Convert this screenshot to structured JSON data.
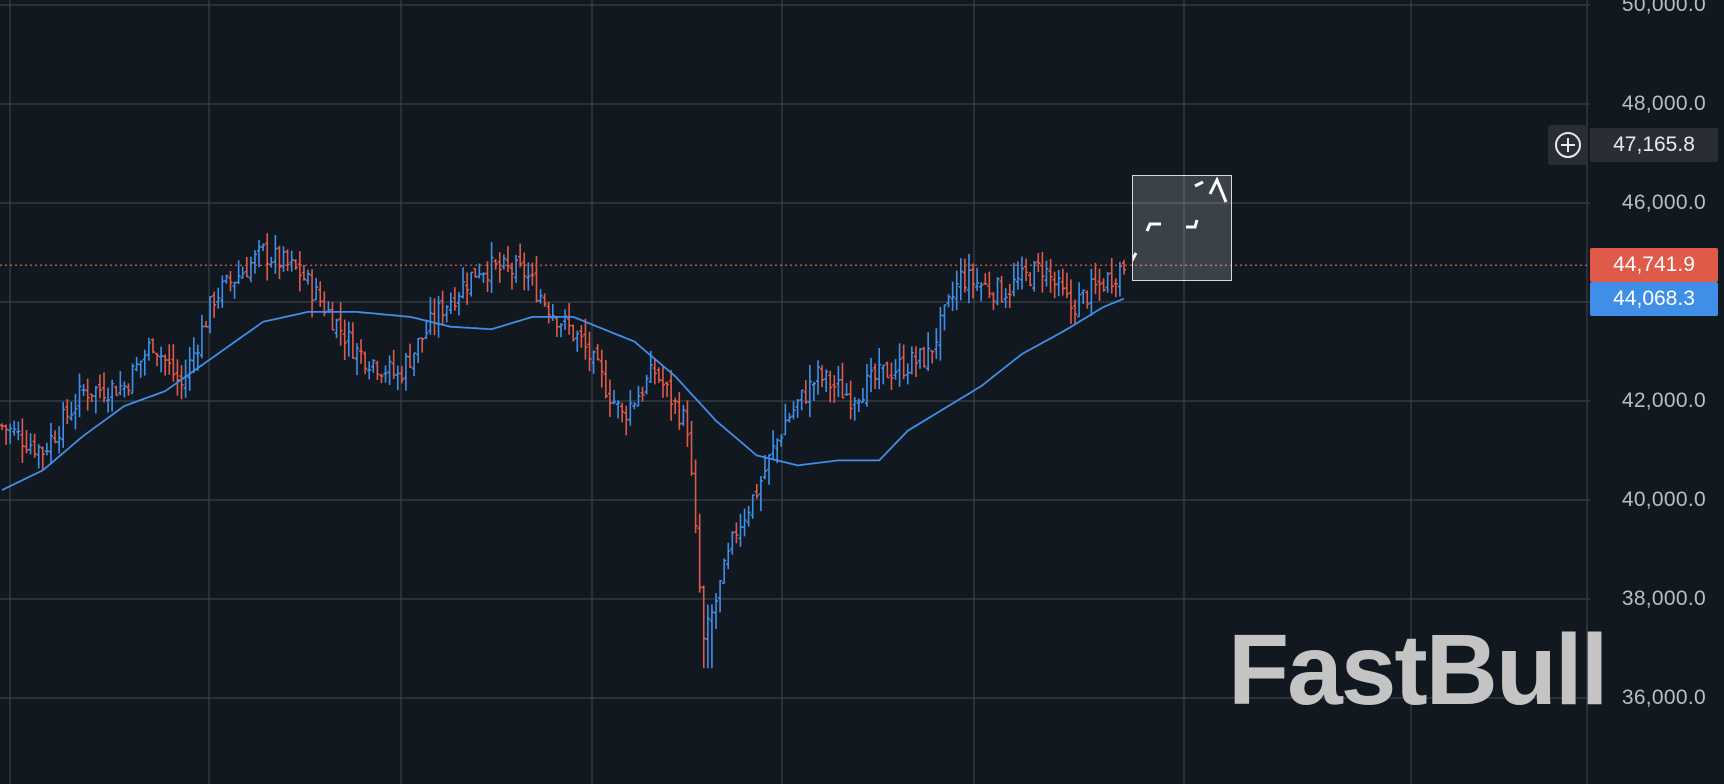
{
  "chart_data": {
    "type": "bar",
    "subtype": "ohlc",
    "title": "",
    "xlabel": "",
    "ylabel": "",
    "ylim": [
      34500,
      50100
    ],
    "y_ticks": [
      "50,000.0",
      "48,000.0",
      "46,000.0",
      "42,000.0",
      "40,000.0",
      "38,000.0",
      "36,000.0"
    ],
    "y_tick_values": [
      50000,
      48000,
      46000,
      42000,
      40000,
      38000,
      36000
    ],
    "grid": true,
    "legend": "none",
    "colors": {
      "up": "#3f8fe8",
      "down": "#e05a4a",
      "ma": "#3f8fe8",
      "grid": "#3a4048",
      "background": "#111820"
    },
    "last_price": {
      "value": 44741.9,
      "label": "44,741.9",
      "color": "#e05a4a"
    },
    "ma_value": {
      "value": 44068.3,
      "label": "44,068.3",
      "color": "#3f8fe8"
    },
    "crosshair_price": {
      "value": 47165.8,
      "label": "47,165.8"
    },
    "price_anchors": [
      [
        0,
        41500
      ],
      [
        10,
        41000
      ],
      [
        20,
        42200
      ],
      [
        30,
        42300
      ],
      [
        37,
        43200
      ],
      [
        44,
        42300
      ],
      [
        52,
        44100
      ],
      [
        64,
        45000
      ],
      [
        73,
        44600
      ],
      [
        80,
        43800
      ],
      [
        87,
        43000
      ],
      [
        97,
        42500
      ],
      [
        107,
        43800
      ],
      [
        117,
        44700
      ],
      [
        128,
        44600
      ],
      [
        135,
        43800
      ],
      [
        142,
        43200
      ],
      [
        152,
        41700
      ],
      [
        160,
        42600
      ],
      [
        168,
        41500
      ],
      [
        172,
        37100
      ],
      [
        180,
        39400
      ],
      [
        185,
        40200
      ],
      [
        192,
        41600
      ],
      [
        200,
        42500
      ],
      [
        208,
        42100
      ],
      [
        217,
        42600
      ],
      [
        227,
        42900
      ],
      [
        235,
        44500
      ],
      [
        245,
        44200
      ],
      [
        255,
        44700
      ],
      [
        262,
        43900
      ],
      [
        270,
        44400
      ],
      [
        275,
        44741.9
      ]
    ],
    "ma_anchors": [
      [
        0,
        40200
      ],
      [
        10,
        40600
      ],
      [
        20,
        41300
      ],
      [
        30,
        41900
      ],
      [
        40,
        42200
      ],
      [
        52,
        42900
      ],
      [
        64,
        43600
      ],
      [
        75,
        43800
      ],
      [
        87,
        43800
      ],
      [
        100,
        43700
      ],
      [
        110,
        43500
      ],
      [
        120,
        43450
      ],
      [
        130,
        43700
      ],
      [
        140,
        43700
      ],
      [
        155,
        43200
      ],
      [
        165,
        42500
      ],
      [
        175,
        41600
      ],
      [
        185,
        40900
      ],
      [
        195,
        40700
      ],
      [
        205,
        40800
      ],
      [
        215,
        40800
      ],
      [
        222,
        41400
      ],
      [
        230,
        41800
      ],
      [
        240,
        42300
      ],
      [
        250,
        42950
      ],
      [
        260,
        43400
      ],
      [
        270,
        43900
      ],
      [
        275,
        44068.3
      ]
    ],
    "bars_count": 276
  },
  "watermark": {
    "text": "FastBull"
  },
  "icons": {
    "crosshair_add": "plus-circle-icon"
  }
}
